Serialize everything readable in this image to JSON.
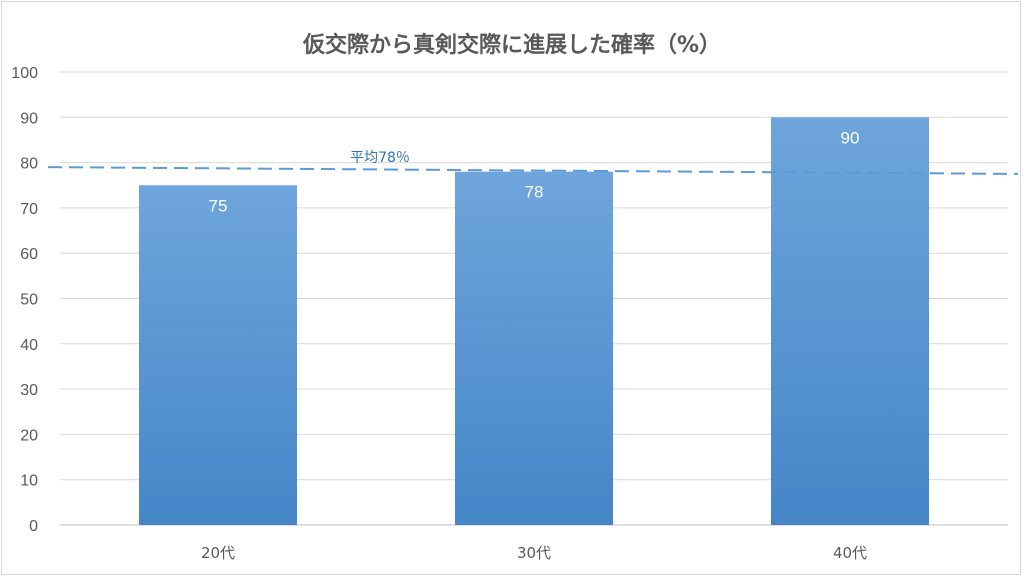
{
  "chart_data": {
    "type": "bar",
    "title": "仮交際から真剣交際に進展した確率（%）",
    "categories": [
      "20代",
      "30代",
      "40代"
    ],
    "values": [
      75,
      78,
      90
    ],
    "ylim": [
      0,
      100
    ],
    "yticks": [
      0,
      10,
      20,
      30,
      40,
      50,
      60,
      70,
      80,
      90,
      100
    ],
    "grid": true,
    "legend": "none",
    "bar_color_top": "#6fa5dc",
    "bar_color_bottom": "#4586c8",
    "reference_line": {
      "label": "平均78％",
      "start": 79,
      "end": 77.5,
      "color": "#5b9bd5",
      "style": "dashed"
    }
  }
}
